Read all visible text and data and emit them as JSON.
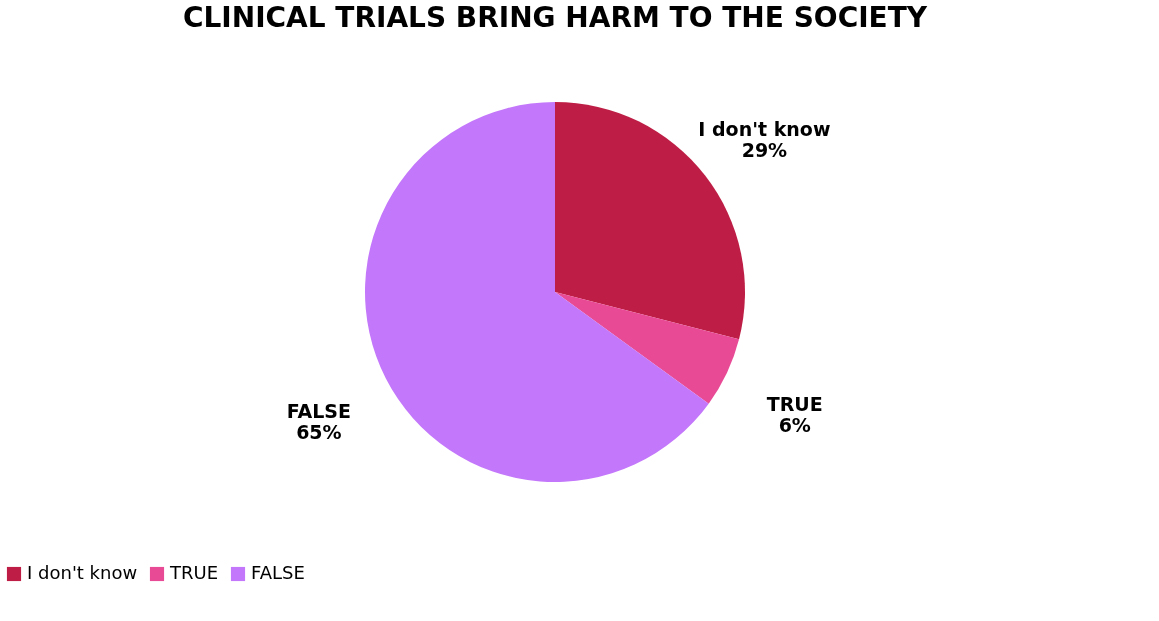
{
  "chart_data": {
    "type": "pie",
    "title": "CLINICAL TRIALS BRING HARM TO THE SOCIETY",
    "categories": [
      "I don't know",
      "TRUE",
      "FALSE"
    ],
    "values": [
      29,
      6,
      65
    ],
    "colors": [
      "#be1e45",
      "#e84a96",
      "#c377fa"
    ],
    "value_labels": [
      "29%",
      "6%",
      "65%"
    ],
    "legend": "bottom"
  }
}
